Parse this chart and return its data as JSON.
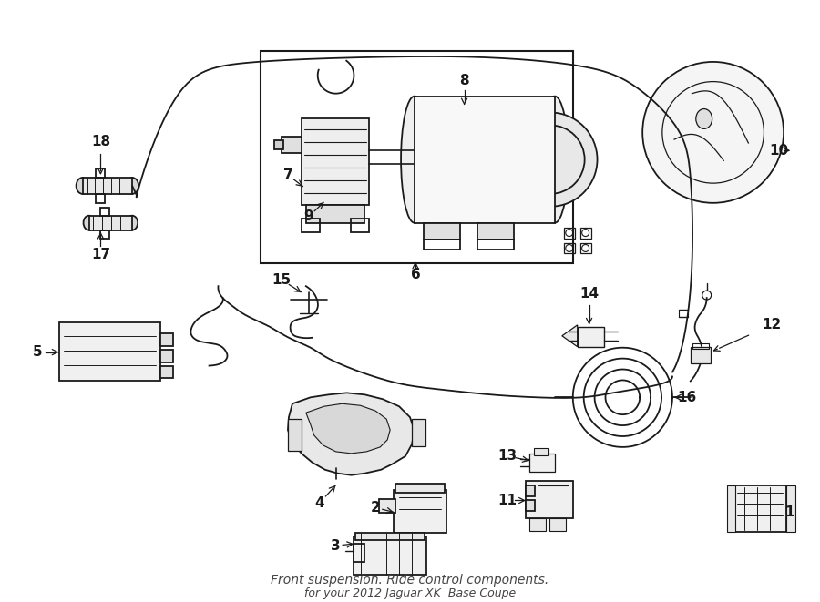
{
  "bg_color": "#ffffff",
  "lc": "#1a1a1a",
  "title": "Front suspension. Ride control components.",
  "subtitle": "for your 2012 Jaguar XK  Base Coupe",
  "figsize": [
    9.0,
    6.61
  ],
  "dpi": 100
}
